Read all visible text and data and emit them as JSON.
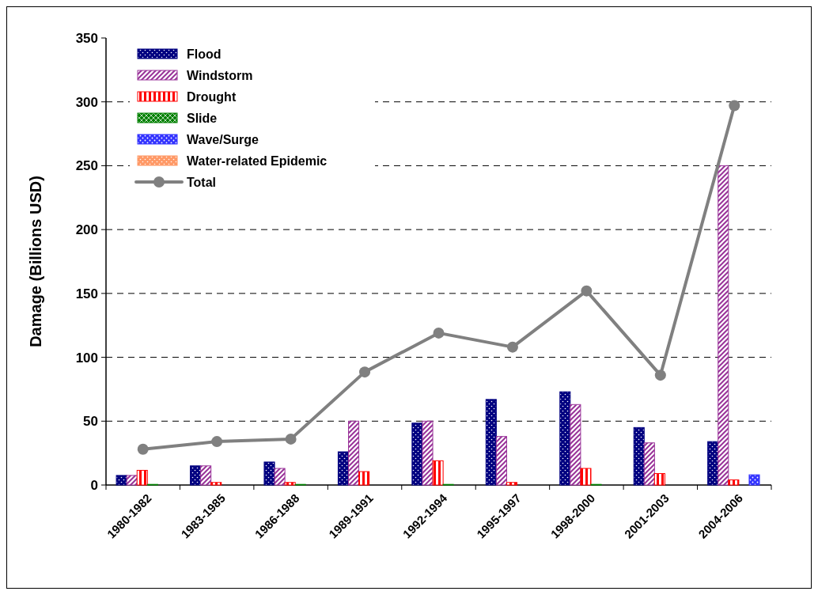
{
  "chart_data": {
    "type": "bar",
    "ylabel": "Damage (Billions USD)",
    "categories": [
      "1980-1982",
      "1983-1985",
      "1986-1988",
      "1989-1991",
      "1992-1994",
      "1995-1997",
      "1998-2000",
      "2001-2003",
      "2004-2006"
    ],
    "series": [
      {
        "name": "Flood",
        "color": "#000080",
        "values": [
          7.5,
          15,
          18,
          26,
          48.5,
          67,
          73,
          45,
          34
        ]
      },
      {
        "name": "Windstorm",
        "color": "#993399",
        "values": [
          7.5,
          15,
          13,
          50,
          50,
          38,
          63,
          33,
          250
        ]
      },
      {
        "name": "Drought",
        "color": "#ff0000",
        "values": [
          11.5,
          2,
          2,
          10.5,
          19,
          2,
          13,
          9,
          4
        ]
      },
      {
        "name": "Slide",
        "color": "#008000",
        "values": [
          0.5,
          null,
          0.5,
          null,
          0.5,
          null,
          0.5,
          null,
          null
        ]
      },
      {
        "name": "Wave/Surge",
        "color": "#3333ff",
        "values": [
          null,
          null,
          null,
          null,
          null,
          null,
          null,
          null,
          8
        ]
      },
      {
        "name": "Water-related Epidemic",
        "color": "#ff9966",
        "values": [
          null,
          null,
          null,
          null,
          null,
          null,
          null,
          null,
          null
        ]
      },
      {
        "name": "Total",
        "type": "line",
        "color": "#808080",
        "marker": "circle",
        "values": [
          28,
          34,
          36,
          88.5,
          119,
          108,
          152,
          86,
          297
        ]
      }
    ],
    "ylim": [
      0,
      350
    ],
    "yticks": [
      0,
      50,
      100,
      150,
      200,
      250,
      300,
      350
    ],
    "grid": "y",
    "legend": "top left"
  }
}
